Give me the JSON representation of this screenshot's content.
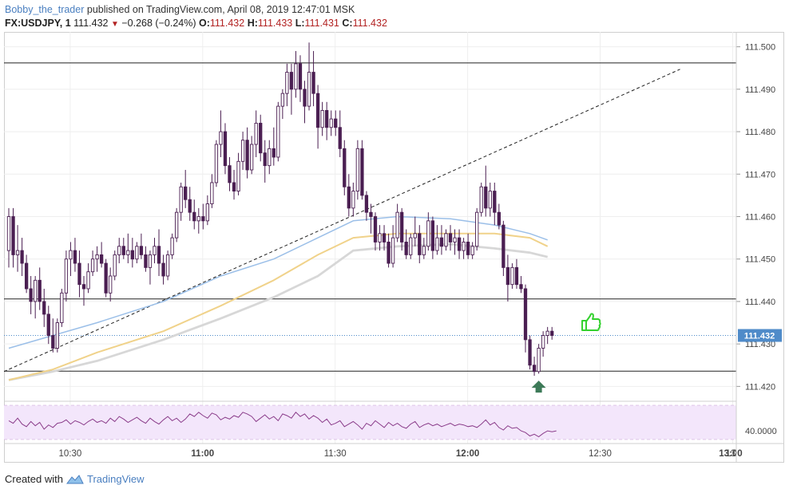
{
  "header": {
    "author": "Bobby_the_trader",
    "published_text": "published on TradingView.com, April 08, 2019 12:47:01 MSK",
    "symbol": "FX:USDJPY, 1",
    "last": "111.432",
    "change_arrow": "▼",
    "change": "−0.268 (−0.24%)",
    "o_label": "O:",
    "o": "111.432",
    "h_label": "H:",
    "h": "111.433",
    "l_label": "L:",
    "l": "111.431",
    "c_label": "C:",
    "c": "111.432"
  },
  "footer": {
    "created_with": "Created with",
    "brand": "TradingView",
    "logo_icon": "tradingview-logo-icon"
  },
  "colors": {
    "bull": "#ffffff",
    "bear": "#4b1f52",
    "wick": "#4b1f52",
    "ma_blue": "#9bbfe8",
    "ma_yellow": "#f0d28a",
    "ma_gray": "#d7d7d7",
    "rsi_line": "#8a3c8a",
    "rsi_band": "#f3e6fb",
    "thumb": "#34d12f",
    "arrow": "#3d7a58",
    "price_label": "#4f8bc9"
  },
  "chart_data": [
    {
      "type": "candlestick",
      "symbol": "FX:USDJPY",
      "interval": "1",
      "x_tick_labels": [
        "10:30",
        "11:00",
        "11:30",
        "12:00",
        "12:30",
        "13:00",
        "13"
      ],
      "y_tick_labels": [
        "111.500",
        "111.490",
        "111.480",
        "111.470",
        "111.460",
        "111.450",
        "111.440",
        "111.430",
        "111.420"
      ],
      "ylim": [
        111.4165,
        111.5035
      ],
      "current_price_label": "111.432",
      "horizontal_levels": [
        111.4962,
        111.4406,
        111.4236
      ],
      "current_price_line": 111.432,
      "trendline": {
        "style": "dashed",
        "from": [
          0,
          111.4235
        ],
        "to": [
          152,
          111.4947
        ]
      },
      "grid": true,
      "candles": [
        [
          111.452,
          111.462,
          111.448,
          111.46
        ],
        [
          111.46,
          111.462,
          111.448,
          111.451
        ],
        [
          111.451,
          111.458,
          111.447,
          111.452
        ],
        [
          111.452,
          111.455,
          111.446,
          111.449
        ],
        [
          111.449,
          111.451,
          111.442,
          111.443
        ],
        [
          111.443,
          111.446,
          111.437,
          111.44
        ],
        [
          111.44,
          111.446,
          111.436,
          111.445
        ],
        [
          111.445,
          111.448,
          111.438,
          111.44
        ],
        [
          111.44,
          111.443,
          111.434,
          111.437
        ],
        [
          111.437,
          111.439,
          111.43,
          111.432
        ],
        [
          111.432,
          111.436,
          111.428,
          111.429
        ],
        [
          111.429,
          111.436,
          111.428,
          111.435
        ],
        [
          111.435,
          111.443,
          111.434,
          111.442
        ],
        [
          111.442,
          111.452,
          111.44,
          111.45
        ],
        [
          111.45,
          111.454,
          111.446,
          111.452
        ],
        [
          111.452,
          111.455,
          111.447,
          111.449
        ],
        [
          111.449,
          111.452,
          111.441,
          111.444
        ],
        [
          111.444,
          111.446,
          111.439,
          111.443
        ],
        [
          111.443,
          111.449,
          111.442,
          111.447
        ],
        [
          111.447,
          111.452,
          111.446,
          111.45
        ],
        [
          111.45,
          111.453,
          111.447,
          111.451
        ],
        [
          111.451,
          111.454,
          111.448,
          111.449
        ],
        [
          111.449,
          111.45,
          111.441,
          111.442
        ],
        [
          111.442,
          111.448,
          111.44,
          111.446
        ],
        [
          111.446,
          111.452,
          111.445,
          111.451
        ],
        [
          111.451,
          111.455,
          111.449,
          111.453
        ],
        [
          111.453,
          111.455,
          111.45,
          111.451
        ],
        [
          111.451,
          111.456,
          111.449,
          111.452
        ],
        [
          111.452,
          111.455,
          111.448,
          111.45
        ],
        [
          111.45,
          111.454,
          111.449,
          111.453
        ],
        [
          111.453,
          111.456,
          111.45,
          111.451
        ],
        [
          111.451,
          111.453,
          111.447,
          111.448
        ],
        [
          111.448,
          111.452,
          111.444,
          111.451
        ],
        [
          111.451,
          111.455,
          111.449,
          111.453
        ],
        [
          111.453,
          111.457,
          111.446,
          111.449
        ],
        [
          111.449,
          111.451,
          111.444,
          111.446
        ],
        [
          111.446,
          111.452,
          111.445,
          111.451
        ],
        [
          111.451,
          111.456,
          111.45,
          111.455
        ],
        [
          111.455,
          111.462,
          111.454,
          111.461
        ],
        [
          111.461,
          111.468,
          111.459,
          111.467
        ],
        [
          111.467,
          111.471,
          111.462,
          111.464
        ],
        [
          111.464,
          111.467,
          111.459,
          111.461
        ],
        [
          111.461,
          111.464,
          111.457,
          111.459
        ],
        [
          111.459,
          111.462,
          111.456,
          111.46
        ],
        [
          111.46,
          111.463,
          111.457,
          111.459
        ],
        [
          111.459,
          111.465,
          111.458,
          111.463
        ],
        [
          111.463,
          111.47,
          111.462,
          111.468
        ],
        [
          111.468,
          111.478,
          111.467,
          111.477
        ],
        [
          111.477,
          111.485,
          111.474,
          111.48
        ],
        [
          111.48,
          111.482,
          111.47,
          111.472
        ],
        [
          111.472,
          111.474,
          111.466,
          111.468
        ],
        [
          111.468,
          111.471,
          111.464,
          111.466
        ],
        [
          111.466,
          111.475,
          111.465,
          111.473
        ],
        [
          111.473,
          111.48,
          111.471,
          111.478
        ],
        [
          111.478,
          111.481,
          111.469,
          111.471
        ],
        [
          111.471,
          111.479,
          111.47,
          111.477
        ],
        [
          111.477,
          111.485,
          111.474,
          111.482
        ],
        [
          111.482,
          111.484,
          111.473,
          111.475
        ],
        [
          111.475,
          111.478,
          111.468,
          111.472
        ],
        [
          111.472,
          111.478,
          111.47,
          111.476
        ],
        [
          111.476,
          111.481,
          111.472,
          111.474
        ],
        [
          111.474,
          111.487,
          111.473,
          111.486
        ],
        [
          111.486,
          111.49,
          111.483,
          111.489
        ],
        [
          111.489,
          111.496,
          111.486,
          111.494
        ],
        [
          111.494,
          111.496,
          111.484,
          111.49
        ],
        [
          111.49,
          111.499,
          111.488,
          111.496
        ],
        [
          111.496,
          111.498,
          111.487,
          111.49
        ],
        [
          111.49,
          111.492,
          111.482,
          111.486
        ],
        [
          111.486,
          111.501,
          111.485,
          111.494
        ],
        [
          111.494,
          111.499,
          111.486,
          111.489
        ],
        [
          111.489,
          111.491,
          111.476,
          111.481
        ],
        [
          111.481,
          111.487,
          111.479,
          111.485
        ],
        [
          111.485,
          111.487,
          111.478,
          111.481
        ],
        [
          111.481,
          111.485,
          111.479,
          111.483
        ],
        [
          111.483,
          111.485,
          111.479,
          111.481
        ],
        [
          111.481,
          111.485,
          111.474,
          111.476
        ],
        [
          111.476,
          111.478,
          111.465,
          111.467
        ],
        [
          111.467,
          111.47,
          111.46,
          111.462
        ],
        [
          111.462,
          111.468,
          111.46,
          111.466
        ],
        [
          111.466,
          111.478,
          111.464,
          111.476
        ],
        [
          111.476,
          111.478,
          111.464,
          111.465
        ],
        [
          111.465,
          111.466,
          111.459,
          111.461
        ],
        [
          111.461,
          111.463,
          111.456,
          111.46
        ],
        [
          111.46,
          111.461,
          111.452,
          111.454
        ],
        [
          111.454,
          111.458,
          111.452,
          111.456
        ],
        [
          111.456,
          111.458,
          111.452,
          111.454
        ],
        [
          111.454,
          111.456,
          111.448,
          111.449
        ],
        [
          111.449,
          111.458,
          111.448,
          111.455
        ],
        [
          111.455,
          111.463,
          111.454,
          111.461
        ],
        [
          111.461,
          111.462,
          111.452,
          111.454
        ],
        [
          111.454,
          111.457,
          111.45,
          111.451
        ],
        [
          111.451,
          111.456,
          111.45,
          111.455
        ],
        [
          111.455,
          111.46,
          111.453,
          111.456
        ],
        [
          111.456,
          111.458,
          111.449,
          111.451
        ],
        [
          111.451,
          111.455,
          111.45,
          111.453
        ],
        [
          111.453,
          111.461,
          111.452,
          111.459
        ],
        [
          111.459,
          111.46,
          111.45,
          111.452
        ],
        [
          111.452,
          111.458,
          111.451,
          111.455
        ],
        [
          111.455,
          111.458,
          111.451,
          111.453
        ],
        [
          111.453,
          111.457,
          111.452,
          111.456
        ],
        [
          111.456,
          111.458,
          111.452,
          111.454
        ],
        [
          111.454,
          111.457,
          111.451,
          111.455
        ],
        [
          111.455,
          111.457,
          111.45,
          111.452
        ],
        [
          111.452,
          111.455,
          111.45,
          111.454
        ],
        [
          111.454,
          111.456,
          111.45,
          111.451
        ],
        [
          111.451,
          111.454,
          111.45,
          111.453
        ],
        [
          111.453,
          111.462,
          111.452,
          111.461
        ],
        [
          111.461,
          111.468,
          111.46,
          111.467
        ],
        [
          111.467,
          111.472,
          111.46,
          111.462
        ],
        [
          111.462,
          111.468,
          111.46,
          111.466
        ],
        [
          111.466,
          111.468,
          111.458,
          111.461
        ],
        [
          111.461,
          111.463,
          111.457,
          111.458
        ],
        [
          111.458,
          111.459,
          111.446,
          111.448
        ],
        [
          111.448,
          111.451,
          111.44,
          111.444
        ],
        [
          111.444,
          111.449,
          111.443,
          111.448
        ],
        [
          111.448,
          111.45,
          111.443,
          111.444
        ],
        [
          111.444,
          111.446,
          111.442,
          111.443
        ],
        [
          111.443,
          111.444,
          111.428,
          111.431
        ],
        [
          111.431,
          111.432,
          111.424,
          111.425
        ],
        [
          111.425,
          111.427,
          111.4225,
          111.4235
        ],
        [
          111.4235,
          111.43,
          111.423,
          111.429
        ],
        [
          111.429,
          111.433,
          111.427,
          111.432
        ],
        [
          111.432,
          111.434,
          111.43,
          111.433
        ],
        [
          111.433,
          111.434,
          111.431,
          111.432
        ]
      ],
      "moving_averages": [
        {
          "color": "blue",
          "points": [
            [
              0,
              111.429
            ],
            [
              10,
              111.432
            ],
            [
              20,
              111.435
            ],
            [
              35,
              111.44
            ],
            [
              48,
              111.446
            ],
            [
              60,
              111.45
            ],
            [
              70,
              111.455
            ],
            [
              78,
              111.459
            ],
            [
              88,
              111.46
            ],
            [
              100,
              111.4595
            ],
            [
              110,
              111.458
            ],
            [
              118,
              111.456
            ],
            [
              122,
              111.4545
            ]
          ]
        },
        {
          "color": "yellow",
          "points": [
            [
              0,
              111.4215
            ],
            [
              10,
              111.424
            ],
            [
              20,
              111.428
            ],
            [
              35,
              111.433
            ],
            [
              48,
              111.439
            ],
            [
              60,
              111.445
            ],
            [
              70,
              111.451
            ],
            [
              78,
              111.455
            ],
            [
              88,
              111.456
            ],
            [
              100,
              111.456
            ],
            [
              110,
              111.456
            ],
            [
              118,
              111.455
            ],
            [
              122,
              111.453
            ]
          ]
        },
        {
          "color": "gray",
          "points": [
            [
              0,
              111.4215
            ],
            [
              10,
              111.4235
            ],
            [
              20,
              111.426
            ],
            [
              35,
              111.431
            ],
            [
              48,
              111.436
            ],
            [
              60,
              111.441
            ],
            [
              70,
              111.446
            ],
            [
              78,
              111.452
            ],
            [
              88,
              111.453
            ],
            [
              100,
              111.4535
            ],
            [
              110,
              111.4525
            ],
            [
              118,
              111.4515
            ],
            [
              122,
              111.4505
            ]
          ]
        }
      ]
    },
    {
      "type": "line",
      "indicator": "oscillator",
      "y_tick_labels": [
        "40.0000"
      ],
      "ylim": [
        25,
        75
      ],
      "band": [
        30,
        70
      ],
      "values": [
        52,
        49,
        55,
        48,
        45,
        51,
        46,
        50,
        42,
        47,
        44,
        49,
        50,
        53,
        48,
        52,
        50,
        47,
        51,
        54,
        50,
        52,
        49,
        55,
        51,
        57,
        54,
        50,
        53,
        56,
        52,
        49,
        55,
        51,
        48,
        53,
        57,
        52,
        55,
        50,
        54,
        60,
        57,
        62,
        58,
        55,
        61,
        59,
        53,
        56,
        54,
        58,
        56,
        62,
        60,
        57,
        51,
        55,
        59,
        54,
        57,
        52,
        60,
        58,
        55,
        62,
        57,
        60,
        54,
        58,
        55,
        50,
        54,
        47,
        49,
        52,
        45,
        48,
        51,
        47,
        42,
        49,
        46,
        52,
        48,
        44,
        50,
        46,
        49,
        45,
        43,
        48,
        51,
        44,
        47,
        49,
        46,
        48,
        45,
        47,
        49,
        46,
        48,
        47,
        45,
        46,
        44,
        48,
        53,
        47,
        50,
        44,
        41,
        46,
        43,
        44,
        40,
        38,
        34,
        36,
        33,
        37,
        40,
        39,
        40
      ]
    }
  ]
}
